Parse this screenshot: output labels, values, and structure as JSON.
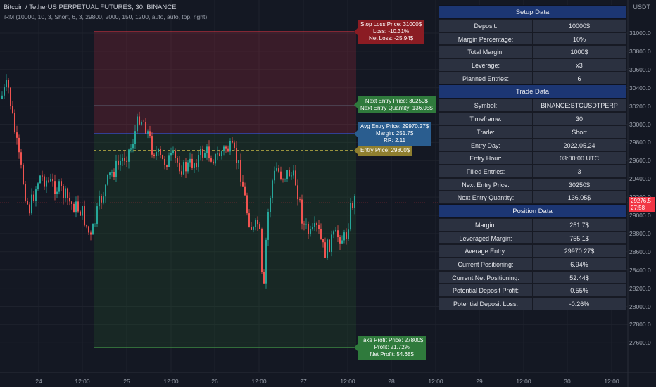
{
  "header": {
    "title": "Bitcoin / TetherUS PERPETUAL FUTURES, 30, BINANCE",
    "indicator": "iRM (10000, 10, 3, Short, 6, 3, 29800, 2000, 150, 1200, auto, auto, top, right)"
  },
  "price_axis": {
    "unit": "USDT",
    "ticks": [
      "31000.0",
      "30800.0",
      "30600.0",
      "30400.0",
      "30200.0",
      "30000.0",
      "29800.0",
      "29600.0",
      "29400.0",
      "29200.0",
      "29000.0",
      "28800.0",
      "28600.0",
      "28400.0",
      "28200.0",
      "28000.0",
      "27800.0",
      "27600.0"
    ],
    "current_price": "29276.5",
    "countdown": "27:58"
  },
  "time_axis": {
    "ticks": [
      "24",
      "12:00",
      "25",
      "12:00",
      "26",
      "12:00",
      "27",
      "12:00",
      "28",
      "12:00",
      "29",
      "12:00",
      "30",
      "12:00"
    ]
  },
  "chart_labels": {
    "stop_loss": [
      "Stop Loss Price: 31000$",
      "Loss: -10.31%",
      "Net Loss: -25.94$"
    ],
    "next_entry": [
      "Next Entry Price: 30250$",
      "Next Entry Quantity: 136.05$"
    ],
    "avg_entry": [
      "Avg Entry Price: 29970.27$",
      "Margin: 251.7$",
      "RR: 2.11"
    ],
    "entry": [
      "Entry Price: 29800$"
    ],
    "take_profit": [
      "Take Profit Price: 27800$",
      "Profit: 21.72%",
      "Net Profit: 54.68$"
    ]
  },
  "colors": {
    "up": "#26a69a",
    "down": "#ef5350",
    "stop_line": "#f23645",
    "take_profit_line": "#4caf50",
    "avg_line": "#2962ff",
    "entry_line": "#e8d44d",
    "panel_header": "#1c3673"
  },
  "panel": {
    "setup": {
      "title": "Setup Data",
      "rows": [
        {
          "k": "Deposit:",
          "v": "10000$"
        },
        {
          "k": "Margin Percentage:",
          "v": "10%"
        },
        {
          "k": "Total Margin:",
          "v": "1000$"
        },
        {
          "k": "Leverage:",
          "v": "x3"
        },
        {
          "k": "Planned Entries:",
          "v": "6"
        }
      ]
    },
    "trade": {
      "title": "Trade Data",
      "rows": [
        {
          "k": "Symbol:",
          "v": "BINANCE:BTCUSDTPERP"
        },
        {
          "k": "Timeframe:",
          "v": "30"
        },
        {
          "k": "Trade:",
          "v": "Short"
        },
        {
          "k": "Entry Day:",
          "v": "2022.05.24"
        },
        {
          "k": "Entry Hour:",
          "v": "03:00:00 UTC"
        },
        {
          "k": "Filled Entries:",
          "v": "3"
        },
        {
          "k": "Next Entry Price:",
          "v": "30250$"
        },
        {
          "k": "Next Entry Quantity:",
          "v": "136.05$"
        }
      ]
    },
    "position": {
      "title": "Position Data",
      "rows": [
        {
          "k": "Margin:",
          "v": "251.7$"
        },
        {
          "k": "Leveraged Margin:",
          "v": "755.1$"
        },
        {
          "k": "Average Entry:",
          "v": "29970.27$"
        },
        {
          "k": "Current Positioning:",
          "v": "6.94%"
        },
        {
          "k": "Current Net Positioning:",
          "v": "52.44$"
        },
        {
          "k": "Potential Deposit Profit:",
          "v": "0.55%"
        },
        {
          "k": "Potential Deposit Loss:",
          "v": "-0.26%"
        }
      ]
    }
  }
}
